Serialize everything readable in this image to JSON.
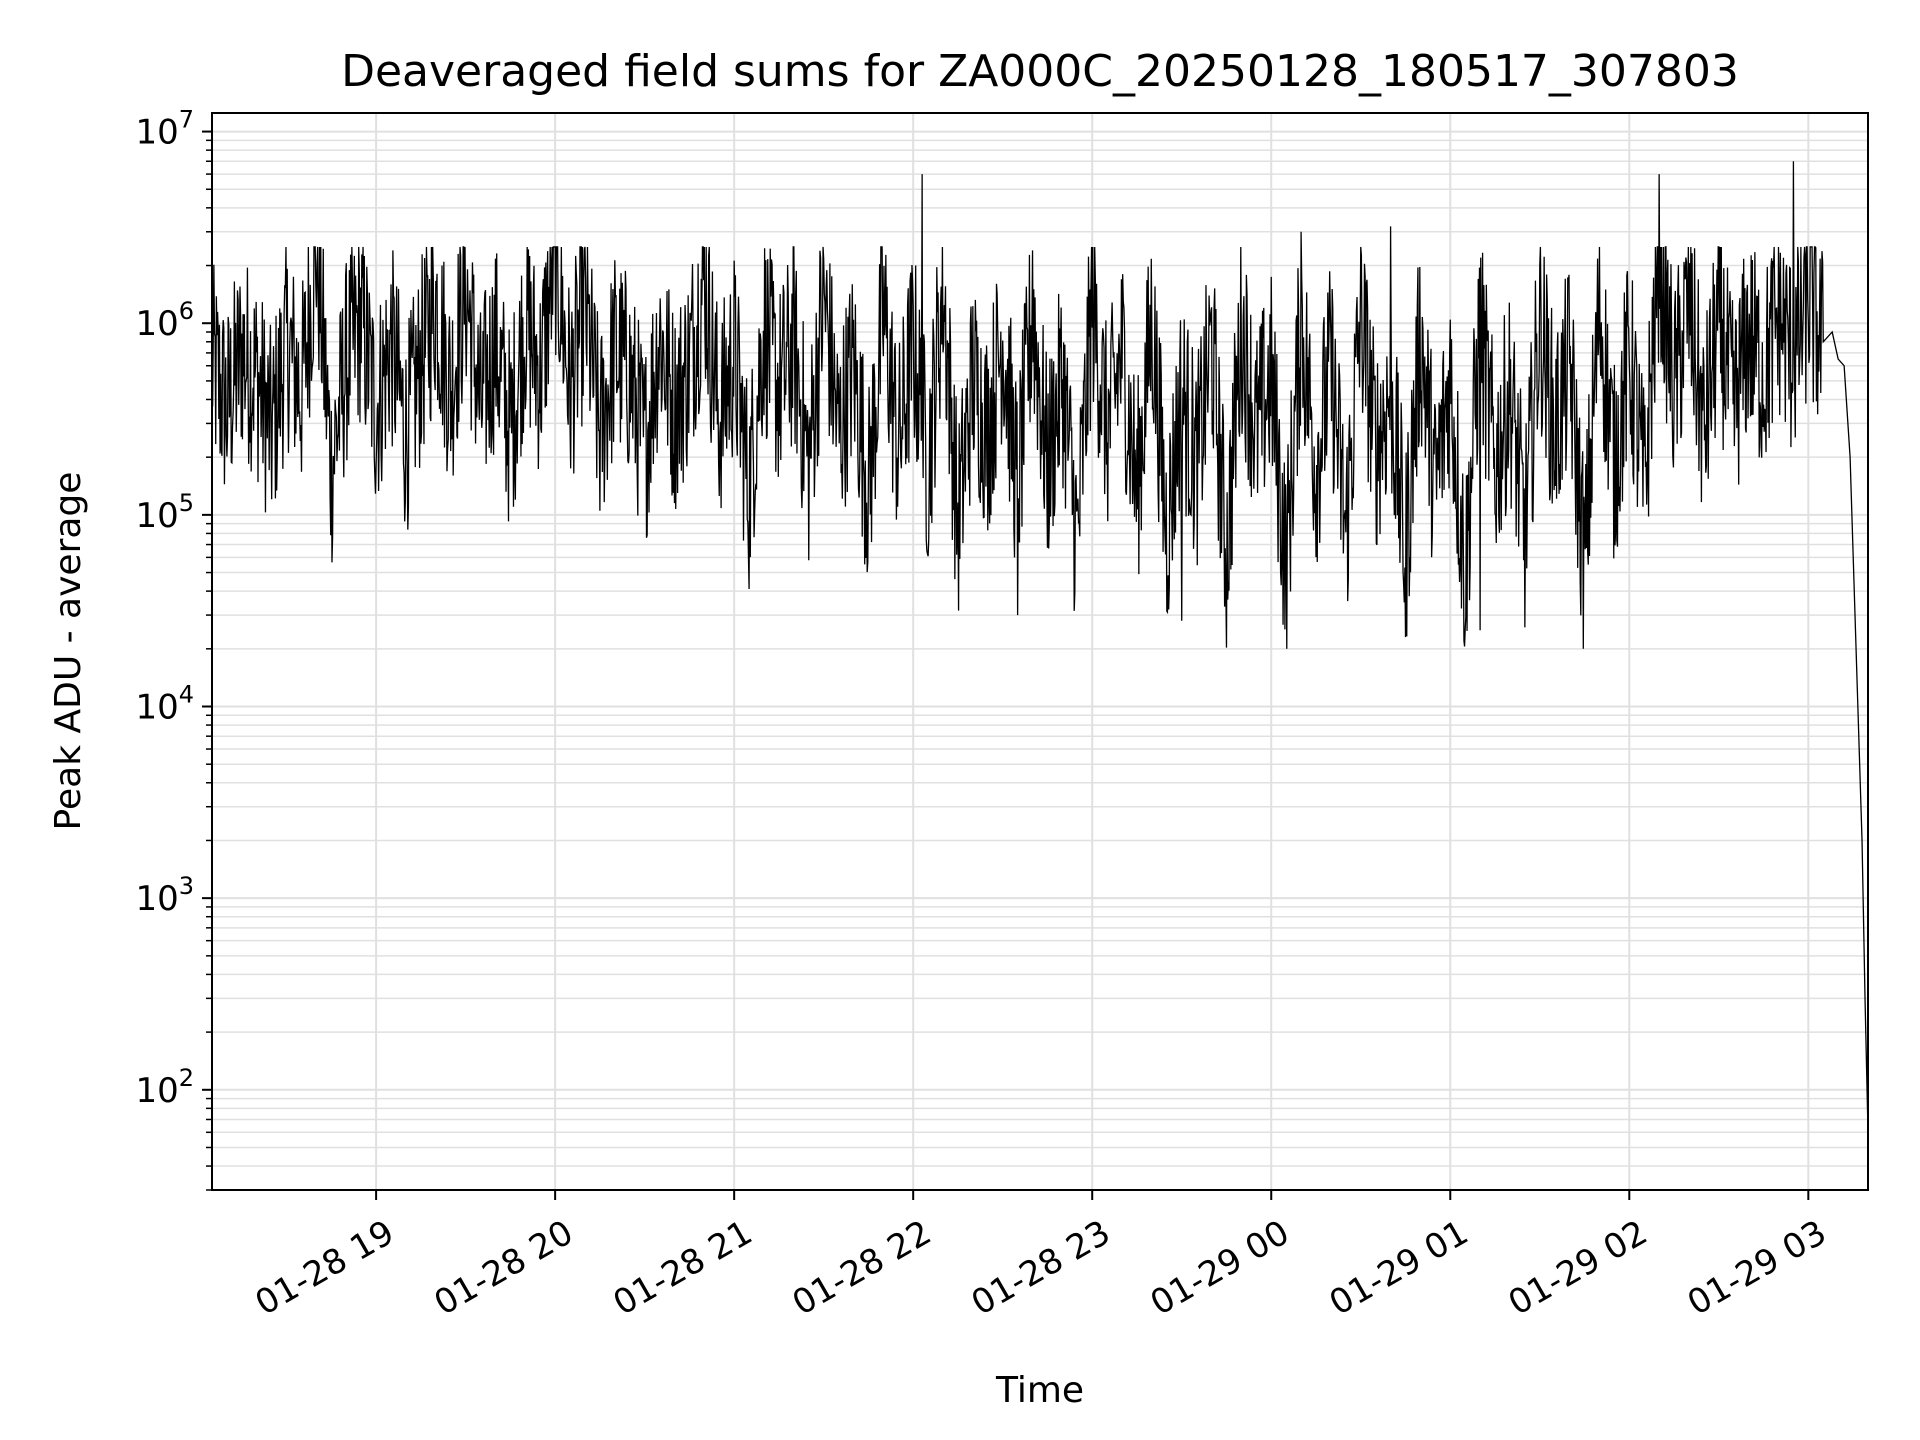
{
  "chart_data": {
    "type": "line",
    "title": "Deaveraged field sums for ZA000C_20250128_180517_307803",
    "xlabel": "Time",
    "ylabel": "Peak ADU - average",
    "yscale": "log",
    "ylim": [
      30,
      12500000
    ],
    "xlim": [
      "2025-01-28 18:05",
      "2025-01-29 03:20"
    ],
    "grid": true,
    "line_color": "#000000",
    "grid_color": "#e0e0e0",
    "x_ticks": [
      {
        "value": "2025-01-28 19:00",
        "label": "01-28 19"
      },
      {
        "value": "2025-01-28 20:00",
        "label": "01-28 20"
      },
      {
        "value": "2025-01-28 21:00",
        "label": "01-28 21"
      },
      {
        "value": "2025-01-28 22:00",
        "label": "01-28 22"
      },
      {
        "value": "2025-01-28 23:00",
        "label": "01-28 23"
      },
      {
        "value": "2025-01-29 00:00",
        "label": "01-29 00"
      },
      {
        "value": "2025-01-29 01:00",
        "label": "01-29 01"
      },
      {
        "value": "2025-01-29 02:00",
        "label": "01-29 02"
      },
      {
        "value": "2025-01-29 03:00",
        "label": "01-29 03"
      }
    ],
    "y_ticks": [
      {
        "value": 100,
        "base": "10",
        "exp": "2"
      },
      {
        "value": 1000,
        "base": "10",
        "exp": "3"
      },
      {
        "value": 10000,
        "base": "10",
        "exp": "4"
      },
      {
        "value": 100000,
        "base": "10",
        "exp": "5"
      },
      {
        "value": 1000000,
        "base": "10",
        "exp": "6"
      },
      {
        "value": 10000000,
        "base": "10",
        "exp": "7"
      }
    ],
    "series": [
      {
        "x": [
          "2025-01-28 18:05",
          "2025-01-28 18:10",
          "2025-01-28 18:15",
          "2025-01-28 18:20",
          "2025-01-28 18:25",
          "2025-01-28 18:30",
          "2025-01-28 18:35",
          "2025-01-28 18:40",
          "2025-01-28 18:45",
          "2025-01-28 18:50",
          "2025-01-28 18:55",
          "2025-01-28 19:00",
          "2025-01-28 19:05",
          "2025-01-28 19:10",
          "2025-01-28 19:15",
          "2025-01-28 19:20",
          "2025-01-28 19:25",
          "2025-01-28 19:30",
          "2025-01-28 19:35",
          "2025-01-28 19:40",
          "2025-01-28 19:45",
          "2025-01-28 19:50",
          "2025-01-28 19:55",
          "2025-01-28 20:00",
          "2025-01-28 20:05",
          "2025-01-28 20:10",
          "2025-01-28 20:15",
          "2025-01-28 20:20",
          "2025-01-28 20:25",
          "2025-01-28 20:30",
          "2025-01-28 20:35",
          "2025-01-28 20:40",
          "2025-01-28 20:45",
          "2025-01-28 20:50",
          "2025-01-28 20:55",
          "2025-01-28 21:00",
          "2025-01-28 21:05",
          "2025-01-28 21:10",
          "2025-01-28 21:15",
          "2025-01-28 21:20",
          "2025-01-28 21:25",
          "2025-01-28 21:30",
          "2025-01-28 21:35",
          "2025-01-28 21:40",
          "2025-01-28 21:45",
          "2025-01-28 21:50",
          "2025-01-28 21:55",
          "2025-01-28 22:00",
          "2025-01-28 22:05",
          "2025-01-28 22:10",
          "2025-01-28 22:15",
          "2025-01-28 22:20",
          "2025-01-28 22:25",
          "2025-01-28 22:30",
          "2025-01-28 22:35",
          "2025-01-28 22:40",
          "2025-01-28 22:45",
          "2025-01-28 22:50",
          "2025-01-28 22:55",
          "2025-01-28 23:00",
          "2025-01-28 23:05",
          "2025-01-28 23:10",
          "2025-01-28 23:15",
          "2025-01-28 23:20",
          "2025-01-28 23:25",
          "2025-01-28 23:30",
          "2025-01-28 23:35",
          "2025-01-28 23:40",
          "2025-01-28 23:45",
          "2025-01-28 23:50",
          "2025-01-28 23:55",
          "2025-01-29 00:00",
          "2025-01-29 00:05",
          "2025-01-29 00:10",
          "2025-01-29 00:15",
          "2025-01-29 00:20",
          "2025-01-29 00:25",
          "2025-01-29 00:30",
          "2025-01-29 00:35",
          "2025-01-29 00:40",
          "2025-01-29 00:45",
          "2025-01-29 00:50",
          "2025-01-29 00:55",
          "2025-01-29 01:00",
          "2025-01-29 01:05",
          "2025-01-29 01:10",
          "2025-01-29 01:15",
          "2025-01-29 01:20",
          "2025-01-29 01:25",
          "2025-01-29 01:30",
          "2025-01-29 01:35",
          "2025-01-29 01:40",
          "2025-01-29 01:45",
          "2025-01-29 01:50",
          "2025-01-29 01:55",
          "2025-01-29 02:00",
          "2025-01-29 02:05",
          "2025-01-29 02:10",
          "2025-01-29 02:15",
          "2025-01-29 02:20",
          "2025-01-29 02:25",
          "2025-01-29 02:30",
          "2025-01-29 02:35",
          "2025-01-29 02:40",
          "2025-01-29 02:45",
          "2025-01-29 02:50",
          "2025-01-29 02:55",
          "2025-01-29 03:00",
          "2025-01-29 03:05",
          "2025-01-29 03:08",
          "2025-01-29 03:10",
          "2025-01-29 03:12",
          "2025-01-29 03:14",
          "2025-01-29 03:16",
          "2025-01-29 03:18",
          "2025-01-29 03:19",
          "2025-01-29 03:20"
        ],
        "y": [
          700000,
          400000,
          800000,
          600000,
          300000,
          900000,
          500000,
          2800000,
          200000,
          700000,
          1200000,
          400000,
          900000,
          300000,
          700000,
          1500000,
          500000,
          1800000,
          400000,
          900000,
          300000,
          1200000,
          600000,
          2800000,
          500000,
          1400000,
          300000,
          800000,
          600000,
          250000,
          1000000,
          400000,
          700000,
          2000000,
          350000,
          800000,
          150000,
          1100000,
          500000,
          900000,
          200000,
          1600000,
          300000,
          700000,
          150000,
          1300000,
          250000,
          900000,
          200000,
          1800000,
          100000,
          600000,
          300000,
          1000000,
          150000,
          1300000,
          200000,
          600000,
          80000,
          1500000,
          300000,
          800000,
          150000,
          1200000,
          90000,
          500000,
          200000,
          900000,
          70000,
          1100000,
          300000,
          600000,
          60000,
          1200000,
          200000,
          700000,
          90000,
          1300000,
          250000,
          500000,
          70000,
          1000000,
          150000,
          600000,
          55000,
          1100000,
          200000,
          500000,
          90000,
          1200000,
          300000,
          700000,
          60000,
          1400000,
          200000,
          800000,
          150000,
          2800000,
          500000,
          1500000,
          300000,
          1200000,
          400000,
          1000000,
          600000,
          1300000,
          700000,
          1600000,
          800000,
          900000,
          650000,
          600000,
          200000,
          20000,
          2000,
          300,
          60
        ],
        "sampled": true
      }
    ],
    "spikes": [
      {
        "x": "2025-01-28 22:03",
        "y": 6000000
      },
      {
        "x": "2025-01-28 22:40",
        "y": 2400000
      },
      {
        "x": "2025-01-29 00:10",
        "y": 3000000
      },
      {
        "x": "2025-01-29 00:40",
        "y": 3200000
      },
      {
        "x": "2025-01-29 02:10",
        "y": 6000000
      },
      {
        "x": "2025-01-29 02:55",
        "y": 7000000
      }
    ],
    "troughs": [
      {
        "x": "2025-01-28 22:35",
        "y": 30000
      },
      {
        "x": "2025-01-28 23:30",
        "y": 28000
      },
      {
        "x": "2025-01-29 00:45",
        "y": 23000
      },
      {
        "x": "2025-01-29 01:10",
        "y": 25000
      }
    ]
  }
}
